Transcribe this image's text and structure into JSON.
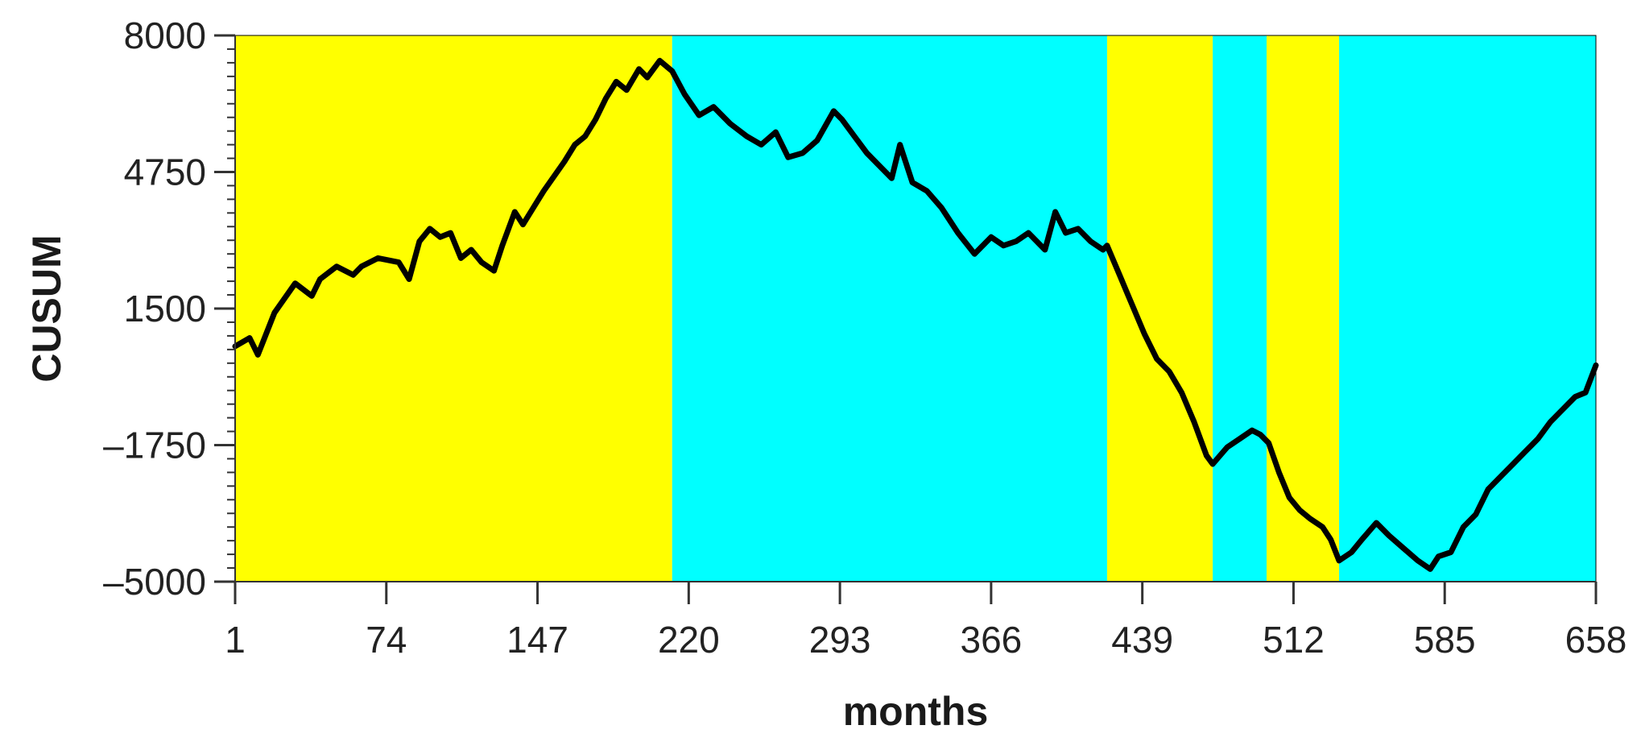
{
  "chart_data": {
    "type": "line",
    "title": "",
    "xlabel": "months",
    "ylabel": "CUSUM",
    "xlim": [
      1,
      658
    ],
    "ylim": [
      -5000,
      8000
    ],
    "xticks": [
      "1",
      "74",
      "147",
      "220",
      "293",
      "366",
      "439",
      "512",
      "585",
      "658"
    ],
    "yticks": [
      "8000",
      "4750",
      "1500",
      "-1750",
      "-5000"
    ],
    "y_tick_labels": [
      "8000",
      "4750",
      "1500",
      "–1750",
      "–5000"
    ],
    "grid": false,
    "legend": "none",
    "background_regions": [
      {
        "x_start": 1,
        "x_end": 212,
        "color": "#ffff00"
      },
      {
        "x_start": 212,
        "x_end": 422,
        "color": "#00ffff"
      },
      {
        "x_start": 422,
        "x_end": 473,
        "color": "#ffff00"
      },
      {
        "x_start": 473,
        "x_end": 499,
        "color": "#00ffff"
      },
      {
        "x_start": 499,
        "x_end": 534,
        "color": "#ffff00"
      },
      {
        "x_start": 534,
        "x_end": 658,
        "color": "#00ffff"
      }
    ],
    "series": [
      {
        "color": "#000000",
        "x": [
          1,
          8,
          12,
          20,
          30,
          38,
          42,
          50,
          58,
          62,
          70,
          80,
          85,
          90,
          95,
          100,
          105,
          110,
          115,
          120,
          126,
          130,
          136,
          140,
          145,
          150,
          160,
          165,
          170,
          175,
          180,
          185,
          190,
          196,
          200,
          206,
          212,
          218,
          225,
          232,
          240,
          248,
          255,
          262,
          268,
          275,
          282,
          290,
          294,
          300,
          306,
          312,
          318,
          322,
          328,
          335,
          342,
          350,
          358,
          366,
          372,
          378,
          384,
          392,
          397,
          402,
          408,
          414,
          420,
          422,
          428,
          434,
          440,
          446,
          452,
          458,
          464,
          470,
          473,
          480,
          486,
          492,
          496,
          500,
          505,
          510,
          515,
          520,
          526,
          530,
          534,
          540,
          545,
          552,
          558,
          565,
          572,
          578,
          582,
          588,
          594,
          600,
          606,
          612,
          618,
          624,
          630,
          636,
          642,
          648,
          653,
          658
        ],
        "y": [
          600,
          800,
          400,
          1400,
          2100,
          1800,
          2200,
          2500,
          2300,
          2500,
          2700,
          2600,
          2200,
          3100,
          3400,
          3200,
          3300,
          2700,
          2900,
          2600,
          2400,
          3000,
          3800,
          3500,
          3900,
          4300,
          5000,
          5400,
          5600,
          6000,
          6500,
          6900,
          6700,
          7200,
          7000,
          7400,
          7150,
          6600,
          6100,
          6300,
          5900,
          5600,
          5400,
          5700,
          5100,
          5200,
          5500,
          6200,
          6000,
          5600,
          5200,
          4900,
          4600,
          5400,
          4500,
          4300,
          3900,
          3300,
          2800,
          3200,
          3000,
          3100,
          3300,
          2900,
          3800,
          3300,
          3400,
          3100,
          2900,
          3000,
          2300,
          1600,
          900,
          300,
          0,
          -500,
          -1200,
          -2000,
          -2200,
          -1800,
          -1600,
          -1400,
          -1500,
          -1700,
          -2400,
          -3000,
          -3300,
          -3500,
          -3700,
          -4000,
          -4500,
          -4300,
          -4000,
          -3600,
          -3900,
          -4200,
          -4500,
          -4700,
          -4400,
          -4300,
          -3700,
          -3400,
          -2800,
          -2500,
          -2200,
          -1900,
          -1600,
          -1200,
          -900,
          -600,
          -500,
          150
        ]
      }
    ]
  }
}
